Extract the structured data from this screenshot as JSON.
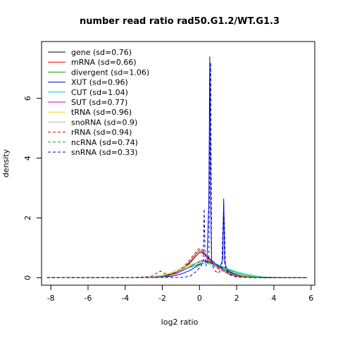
{
  "chart_data": {
    "type": "line",
    "title": "number read ratio rad50.G1.2/WT.G1.3",
    "xlabel": "log2 ratio",
    "ylabel": "density",
    "xlim": [
      -8.5,
      6.2
    ],
    "ylim": [
      -0.25,
      7.9
    ],
    "xticks": [
      -8,
      -6,
      -4,
      -2,
      0,
      2,
      4,
      6
    ],
    "yticks": [
      0,
      2,
      4,
      6
    ],
    "legend_position": "top-left",
    "grid": false,
    "series": [
      {
        "name": "gene (sd=0.76)",
        "color": "#000000",
        "dash": false,
        "x": [
          -8.2,
          -3.0,
          -2.0,
          -1.5,
          -1.0,
          -0.5,
          -0.2,
          0.0,
          0.2,
          0.4,
          0.6,
          0.8,
          1.0,
          1.3,
          1.6,
          2.0,
          2.5,
          3.0,
          4.0,
          5.8
        ],
        "y": [
          0,
          0.01,
          0.05,
          0.12,
          0.25,
          0.5,
          0.72,
          0.85,
          0.82,
          0.72,
          0.6,
          0.5,
          0.4,
          0.28,
          0.18,
          0.1,
          0.04,
          0.01,
          0,
          0
        ]
      },
      {
        "name": "mRNA (sd=0.66)",
        "color": "#dd0000",
        "dash": false,
        "x": [
          -8.2,
          -2.5,
          -1.8,
          -1.3,
          -0.9,
          -0.5,
          -0.2,
          0.0,
          0.2,
          0.4,
          0.6,
          0.9,
          1.2,
          1.6,
          2.0,
          2.5,
          3.5,
          5.8
        ],
        "y": [
          0,
          0.01,
          0.05,
          0.15,
          0.3,
          0.55,
          0.8,
          0.92,
          0.85,
          0.7,
          0.55,
          0.4,
          0.25,
          0.12,
          0.05,
          0.02,
          0,
          0
        ]
      },
      {
        "name": "divergent (sd=1.06)",
        "color": "#00aa00",
        "dash": false,
        "x": [
          -8.2,
          -3.5,
          -2.5,
          -2.0,
          -1.5,
          -1.0,
          -0.5,
          0.0,
          0.3,
          0.6,
          1.0,
          1.5,
          2.0,
          2.5,
          3.0,
          4.0,
          5.8
        ],
        "y": [
          0,
          0.01,
          0.04,
          0.08,
          0.15,
          0.25,
          0.35,
          0.45,
          0.5,
          0.48,
          0.4,
          0.28,
          0.16,
          0.08,
          0.03,
          0.01,
          0
        ]
      },
      {
        "name": "XUT (sd=0.96)",
        "color": "#0000cc",
        "dash": false,
        "x": [
          -8.2,
          -2.5,
          -1.5,
          -1.0,
          -0.5,
          -0.1,
          0.2,
          0.4,
          0.5,
          0.55,
          0.6,
          0.65,
          0.7,
          0.9,
          1.1,
          1.25,
          1.3,
          1.35,
          1.5,
          1.8,
          2.2,
          2.7,
          3.5,
          5.8
        ],
        "y": [
          0,
          0.01,
          0.05,
          0.12,
          0.25,
          0.4,
          0.5,
          0.55,
          2.6,
          7.4,
          2.6,
          0.6,
          0.55,
          0.45,
          0.35,
          0.6,
          2.65,
          0.5,
          0.25,
          0.15,
          0.07,
          0.02,
          0,
          0
        ]
      },
      {
        "name": "CUT (sd=1.04)",
        "color": "#00cccc",
        "dash": false,
        "x": [
          -8.2,
          -3.5,
          -2.5,
          -1.8,
          -1.2,
          -0.6,
          -0.1,
          0.3,
          0.7,
          1.1,
          1.5,
          2.0,
          2.5,
          3.0,
          3.5,
          4.2,
          5.8
        ],
        "y": [
          0,
          0.01,
          0.04,
          0.1,
          0.2,
          0.33,
          0.45,
          0.52,
          0.5,
          0.42,
          0.3,
          0.2,
          0.12,
          0.06,
          0.02,
          0.01,
          0
        ]
      },
      {
        "name": "SUT (sd=0.77)",
        "color": "#cc00cc",
        "dash": false,
        "x": [
          -8.2,
          -2.5,
          -1.8,
          -1.2,
          -0.7,
          -0.3,
          0.0,
          0.3,
          0.6,
          0.9,
          1.2,
          1.6,
          2.0,
          2.5,
          3.2,
          5.8
        ],
        "y": [
          0,
          0.01,
          0.05,
          0.15,
          0.3,
          0.45,
          0.55,
          0.58,
          0.52,
          0.42,
          0.3,
          0.17,
          0.08,
          0.03,
          0.01,
          0
        ]
      },
      {
        "name": "tRNA (sd=0.96)",
        "color": "#eedd00",
        "dash": false,
        "x": [
          -8.2,
          -3.0,
          -2.2,
          -1.6,
          -1.1,
          -0.6,
          -0.2,
          0.2,
          0.5,
          0.8,
          1.2,
          1.6,
          2.0,
          2.6,
          3.5,
          5.8
        ],
        "y": [
          0,
          0.01,
          0.06,
          0.15,
          0.3,
          0.42,
          0.48,
          0.5,
          0.46,
          0.38,
          0.26,
          0.15,
          0.08,
          0.03,
          0.01,
          0
        ]
      },
      {
        "name": "snoRNA (sd=0.9)",
        "color": "#bbbbbb",
        "dash": false,
        "x": [
          -8.2,
          -3.0,
          -2.0,
          -1.4,
          -0.9,
          -0.4,
          0.0,
          0.4,
          0.8,
          1.2,
          1.6,
          2.1,
          2.7,
          3.5,
          5.8
        ],
        "y": [
          0,
          0.01,
          0.06,
          0.16,
          0.3,
          0.45,
          0.52,
          0.48,
          0.38,
          0.26,
          0.15,
          0.07,
          0.02,
          0.01,
          0
        ]
      },
      {
        "name": "rRNA (sd=0.94)",
        "color": "#dd0000",
        "dash": true,
        "x": [
          -8.2,
          -3.0,
          -2.6,
          -2.3,
          -2.1,
          -1.9,
          -1.6,
          -1.2,
          -0.8,
          -0.4,
          -0.1,
          0.1,
          0.3,
          0.6,
          1.0,
          1.5,
          2.0,
          2.6,
          3.5,
          5.8
        ],
        "y": [
          0,
          0.01,
          0.05,
          0.15,
          0.22,
          0.15,
          0.1,
          0.2,
          0.4,
          0.7,
          0.95,
          0.98,
          0.8,
          0.5,
          0.3,
          0.15,
          0.06,
          0.02,
          0.01,
          0
        ]
      },
      {
        "name": "ncRNA (sd=0.74)",
        "color": "#00aa00",
        "dash": true,
        "x": [
          -8.2,
          -2.5,
          -1.8,
          -1.2,
          -0.7,
          -0.3,
          0.0,
          0.3,
          0.6,
          1.0,
          1.4,
          1.8,
          2.3,
          3.0,
          5.8
        ],
        "y": [
          0,
          0.01,
          0.05,
          0.15,
          0.3,
          0.45,
          0.55,
          0.56,
          0.5,
          0.38,
          0.24,
          0.12,
          0.05,
          0.01,
          0
        ]
      },
      {
        "name": "snRNA (sd=0.33)",
        "color": "#0000cc",
        "dash": true,
        "x": [
          -8.2,
          -1.0,
          -0.5,
          -0.2,
          0.1,
          0.2,
          0.25,
          0.3,
          0.35,
          0.4,
          0.5,
          0.6,
          0.65,
          0.7,
          0.8,
          1.0,
          1.2,
          1.25,
          1.3,
          1.35,
          1.4,
          1.6,
          2.0,
          3.0,
          5.8
        ],
        "y": [
          0,
          0.01,
          0.05,
          0.2,
          0.4,
          0.6,
          2.3,
          0.6,
          0.4,
          0.5,
          0.6,
          7.2,
          0.6,
          0.4,
          0.25,
          0.15,
          0.3,
          1.5,
          2.4,
          1.5,
          0.3,
          0.1,
          0.02,
          0,
          0
        ]
      }
    ]
  }
}
